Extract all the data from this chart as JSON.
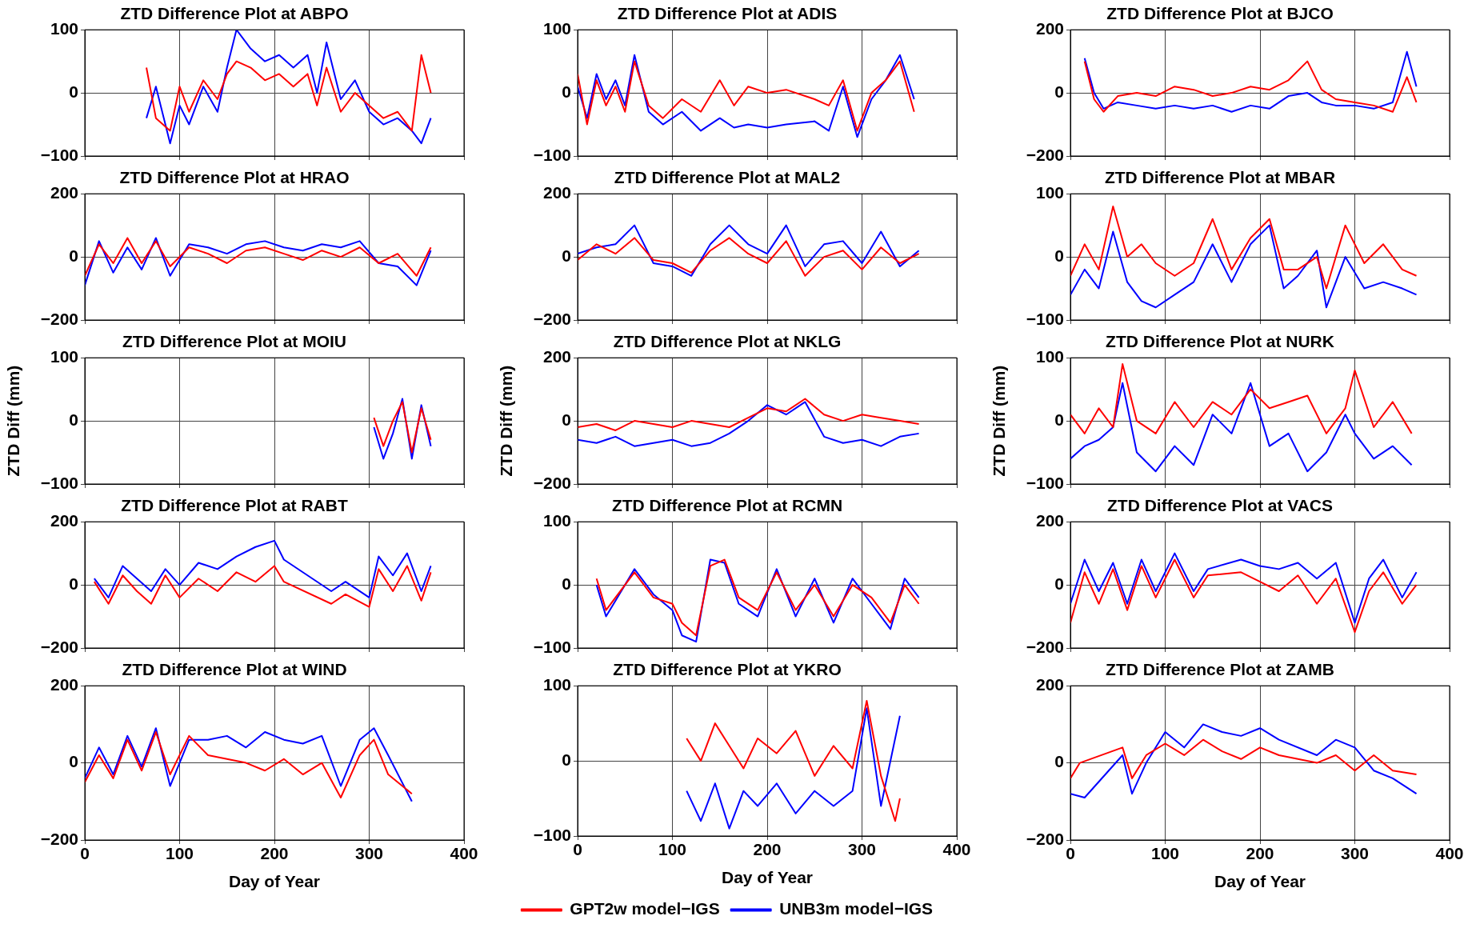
{
  "chart_data": [
    {
      "type": "line",
      "title": "ZTD Difference Plot at ABPO",
      "xlim": [
        0,
        400
      ],
      "xticks": [
        0,
        100,
        200,
        300,
        400
      ],
      "ylim": [
        -100,
        100
      ],
      "yticks": [
        -100,
        0,
        100
      ],
      "grid": true,
      "tick_labels": "y",
      "series": [
        {
          "color": "#ff0000",
          "x": [
            65,
            75,
            90,
            100,
            110,
            125,
            140,
            150,
            160,
            175,
            190,
            205,
            220,
            235,
            245,
            255,
            270,
            285,
            300,
            315,
            330,
            345,
            355,
            365
          ],
          "values": [
            40,
            -40,
            -60,
            10,
            -30,
            20,
            -10,
            30,
            50,
            40,
            20,
            30,
            10,
            30,
            -20,
            40,
            -30,
            0,
            -20,
            -40,
            -30,
            -60,
            60,
            0
          ]
        },
        {
          "color": "#0000ff",
          "x": [
            65,
            75,
            90,
            100,
            110,
            125,
            140,
            150,
            160,
            175,
            190,
            205,
            220,
            235,
            245,
            255,
            270,
            285,
            300,
            315,
            330,
            345,
            355,
            365
          ],
          "values": [
            -40,
            10,
            -80,
            -20,
            -50,
            10,
            -30,
            40,
            100,
            70,
            50,
            60,
            40,
            60,
            0,
            80,
            -10,
            20,
            -30,
            -50,
            -40,
            -60,
            -80,
            -40
          ]
        }
      ]
    },
    {
      "type": "line",
      "title": "ZTD Difference Plot at ADIS",
      "xlim": [
        0,
        400
      ],
      "xticks": [
        0,
        100,
        200,
        300,
        400
      ],
      "ylim": [
        -100,
        100
      ],
      "yticks": [
        -100,
        0,
        100
      ],
      "grid": true,
      "tick_labels": "y",
      "series": [
        {
          "color": "#ff0000",
          "x": [
            0,
            10,
            20,
            30,
            40,
            50,
            60,
            75,
            90,
            110,
            130,
            150,
            165,
            180,
            200,
            220,
            250,
            265,
            280,
            295,
            310,
            325,
            340,
            355
          ],
          "values": [
            30,
            -50,
            20,
            -20,
            10,
            -30,
            50,
            -20,
            -40,
            -10,
            -30,
            20,
            -20,
            10,
            0,
            5,
            -10,
            -20,
            20,
            -60,
            0,
            20,
            50,
            -30
          ]
        },
        {
          "color": "#0000ff",
          "x": [
            0,
            10,
            20,
            30,
            40,
            50,
            60,
            75,
            90,
            110,
            130,
            150,
            165,
            180,
            200,
            220,
            250,
            265,
            280,
            295,
            310,
            325,
            340,
            355
          ],
          "values": [
            10,
            -40,
            30,
            -10,
            20,
            -20,
            60,
            -30,
            -50,
            -30,
            -60,
            -40,
            -55,
            -50,
            -55,
            -50,
            -45,
            -60,
            10,
            -70,
            -10,
            20,
            60,
            -10
          ]
        }
      ]
    },
    {
      "type": "line",
      "title": "ZTD Difference Plot at BJCO",
      "xlim": [
        0,
        400
      ],
      "xticks": [
        0,
        100,
        200,
        300,
        400
      ],
      "ylim": [
        -200,
        200
      ],
      "yticks": [
        -200,
        0,
        200
      ],
      "grid": true,
      "tick_labels": "y",
      "series": [
        {
          "color": "#ff0000",
          "x": [
            15,
            25,
            35,
            50,
            70,
            90,
            110,
            130,
            150,
            170,
            190,
            210,
            230,
            250,
            265,
            280,
            300,
            320,
            340,
            355,
            365
          ],
          "values": [
            100,
            -20,
            -60,
            -10,
            0,
            -10,
            20,
            10,
            -10,
            0,
            20,
            10,
            40,
            100,
            10,
            -20,
            -30,
            -40,
            -60,
            50,
            -30
          ]
        },
        {
          "color": "#0000ff",
          "x": [
            15,
            25,
            35,
            50,
            70,
            90,
            110,
            130,
            150,
            170,
            190,
            210,
            230,
            250,
            265,
            280,
            300,
            320,
            340,
            355,
            365
          ],
          "values": [
            110,
            0,
            -50,
            -30,
            -40,
            -50,
            -40,
            -50,
            -40,
            -60,
            -40,
            -50,
            -10,
            0,
            -30,
            -40,
            -40,
            -50,
            -30,
            130,
            20
          ]
        }
      ]
    },
    {
      "type": "line",
      "title": "ZTD Difference Plot at HRAO",
      "xlim": [
        0,
        400
      ],
      "xticks": [
        0,
        100,
        200,
        300,
        400
      ],
      "ylim": [
        -200,
        200
      ],
      "yticks": [
        -200,
        0,
        200
      ],
      "grid": true,
      "tick_labels": "y",
      "series": [
        {
          "color": "#ff0000",
          "x": [
            0,
            15,
            30,
            45,
            60,
            75,
            90,
            110,
            130,
            150,
            170,
            190,
            210,
            230,
            250,
            270,
            290,
            310,
            330,
            350,
            365
          ],
          "values": [
            -60,
            40,
            -20,
            60,
            -20,
            50,
            -30,
            30,
            10,
            -20,
            20,
            30,
            10,
            -10,
            20,
            0,
            30,
            -20,
            10,
            -60,
            30
          ]
        },
        {
          "color": "#0000ff",
          "x": [
            0,
            15,
            30,
            45,
            60,
            75,
            90,
            110,
            130,
            150,
            170,
            190,
            210,
            230,
            250,
            270,
            290,
            310,
            330,
            350,
            365
          ],
          "values": [
            -90,
            50,
            -50,
            30,
            -40,
            60,
            -60,
            40,
            30,
            10,
            40,
            50,
            30,
            20,
            40,
            30,
            50,
            -20,
            -30,
            -90,
            20
          ]
        }
      ]
    },
    {
      "type": "line",
      "title": "ZTD Difference Plot at MAL2",
      "xlim": [
        0,
        400
      ],
      "xticks": [
        0,
        100,
        200,
        300,
        400
      ],
      "ylim": [
        -200,
        200
      ],
      "yticks": [
        -200,
        0,
        200
      ],
      "grid": true,
      "tick_labels": "y",
      "series": [
        {
          "color": "#ff0000",
          "x": [
            0,
            20,
            40,
            60,
            80,
            100,
            120,
            140,
            160,
            180,
            200,
            220,
            240,
            260,
            280,
            300,
            320,
            340,
            360
          ],
          "values": [
            -10,
            40,
            10,
            60,
            -10,
            -20,
            -50,
            20,
            60,
            10,
            -20,
            50,
            -60,
            0,
            20,
            -40,
            30,
            -20,
            10
          ]
        },
        {
          "color": "#0000ff",
          "x": [
            0,
            20,
            40,
            60,
            80,
            100,
            120,
            140,
            160,
            180,
            200,
            220,
            240,
            260,
            280,
            300,
            320,
            340,
            360
          ],
          "values": [
            10,
            30,
            40,
            100,
            -20,
            -30,
            -60,
            40,
            100,
            40,
            10,
            100,
            -30,
            40,
            50,
            -20,
            80,
            -30,
            20
          ]
        }
      ]
    },
    {
      "type": "line",
      "title": "ZTD Difference Plot at MBAR",
      "xlim": [
        0,
        400
      ],
      "xticks": [
        0,
        100,
        200,
        300,
        400
      ],
      "ylim": [
        -100,
        100
      ],
      "yticks": [
        -100,
        0,
        100
      ],
      "grid": true,
      "tick_labels": "y",
      "series": [
        {
          "color": "#ff0000",
          "x": [
            0,
            15,
            30,
            45,
            60,
            75,
            90,
            110,
            130,
            150,
            170,
            190,
            210,
            225,
            240,
            260,
            270,
            290,
            310,
            330,
            350,
            365
          ],
          "values": [
            -30,
            20,
            -20,
            80,
            0,
            20,
            -10,
            -30,
            -10,
            60,
            -20,
            30,
            60,
            -20,
            -20,
            0,
            -50,
            50,
            -10,
            20,
            -20,
            -30
          ]
        },
        {
          "color": "#0000ff",
          "x": [
            0,
            15,
            30,
            45,
            60,
            75,
            90,
            110,
            130,
            150,
            170,
            190,
            210,
            225,
            240,
            260,
            270,
            290,
            310,
            330,
            350,
            365
          ],
          "values": [
            -60,
            -20,
            -50,
            40,
            -40,
            -70,
            -80,
            -60,
            -40,
            20,
            -40,
            20,
            50,
            -50,
            -30,
            10,
            -80,
            0,
            -50,
            -40,
            -50,
            -60
          ]
        }
      ]
    },
    {
      "type": "line",
      "title": "ZTD Difference Plot at MOIU",
      "ylabel": "ZTD Diff (mm)",
      "xlim": [
        0,
        400
      ],
      "xticks": [
        0,
        100,
        200,
        300,
        400
      ],
      "ylim": [
        -100,
        100
      ],
      "yticks": [
        -100,
        0,
        100
      ],
      "grid": true,
      "tick_labels": "y",
      "series": [
        {
          "color": "#ff0000",
          "x": [
            305,
            315,
            325,
            335,
            345,
            355,
            365
          ],
          "values": [
            5,
            -40,
            0,
            30,
            -50,
            20,
            -30
          ]
        },
        {
          "color": "#0000ff",
          "x": [
            305,
            315,
            325,
            335,
            345,
            355,
            365
          ],
          "values": [
            -10,
            -60,
            -20,
            35,
            -60,
            25,
            -40
          ]
        }
      ]
    },
    {
      "type": "line",
      "title": "ZTD Difference Plot at NKLG",
      "ylabel": "ZTD Diff (mm)",
      "xlim": [
        0,
        400
      ],
      "xticks": [
        0,
        100,
        200,
        300,
        400
      ],
      "ylim": [
        -200,
        200
      ],
      "yticks": [
        -200,
        0,
        200
      ],
      "grid": true,
      "tick_labels": "y",
      "series": [
        {
          "color": "#ff0000",
          "x": [
            0,
            20,
            40,
            60,
            80,
            100,
            120,
            140,
            160,
            180,
            200,
            220,
            240,
            260,
            280,
            300,
            320,
            340,
            360
          ],
          "values": [
            -20,
            -10,
            -30,
            0,
            -10,
            -20,
            0,
            -10,
            -20,
            10,
            40,
            30,
            70,
            20,
            0,
            20,
            10,
            0,
            -10
          ]
        },
        {
          "color": "#0000ff",
          "x": [
            0,
            20,
            40,
            60,
            80,
            100,
            120,
            140,
            160,
            180,
            200,
            220,
            240,
            260,
            280,
            300,
            320,
            340,
            360
          ],
          "values": [
            -60,
            -70,
            -50,
            -80,
            -70,
            -60,
            -80,
            -70,
            -40,
            0,
            50,
            20,
            60,
            -50,
            -70,
            -60,
            -80,
            -50,
            -40
          ]
        }
      ]
    },
    {
      "type": "line",
      "title": "ZTD Difference Plot at NURK",
      "ylabel": "ZTD Diff (mm)",
      "xlim": [
        0,
        400
      ],
      "xticks": [
        0,
        100,
        200,
        300,
        400
      ],
      "ylim": [
        -100,
        100
      ],
      "yticks": [
        -100,
        0,
        100
      ],
      "grid": true,
      "tick_labels": "y",
      "series": [
        {
          "color": "#ff0000",
          "x": [
            0,
            15,
            30,
            45,
            55,
            70,
            90,
            110,
            130,
            150,
            170,
            190,
            210,
            230,
            250,
            270,
            290,
            300,
            320,
            340,
            360
          ],
          "values": [
            10,
            -20,
            20,
            -10,
            90,
            0,
            -20,
            30,
            -10,
            30,
            10,
            50,
            20,
            30,
            40,
            -20,
            20,
            80,
            -10,
            30,
            -20
          ]
        },
        {
          "color": "#0000ff",
          "x": [
            0,
            15,
            30,
            45,
            55,
            70,
            90,
            110,
            130,
            150,
            170,
            190,
            210,
            230,
            250,
            270,
            290,
            300,
            320,
            340,
            360
          ],
          "values": [
            -60,
            -40,
            -30,
            -10,
            60,
            -50,
            -80,
            -40,
            -70,
            10,
            -20,
            60,
            -40,
            -20,
            -80,
            -50,
            10,
            -20,
            -60,
            -40,
            -70
          ]
        }
      ]
    },
    {
      "type": "line",
      "title": "ZTD Difference Plot at RABT",
      "xlim": [
        0,
        400
      ],
      "xticks": [
        0,
        100,
        200,
        300,
        400
      ],
      "ylim": [
        -200,
        200
      ],
      "yticks": [
        -200,
        0,
        200
      ],
      "grid": true,
      "tick_labels": "y",
      "series": [
        {
          "color": "#ff0000",
          "x": [
            10,
            25,
            40,
            55,
            70,
            85,
            100,
            120,
            140,
            160,
            180,
            200,
            210,
            260,
            275,
            300,
            310,
            325,
            340,
            355,
            365
          ],
          "values": [
            10,
            -60,
            30,
            -20,
            -60,
            30,
            -40,
            20,
            -20,
            40,
            10,
            60,
            10,
            -60,
            -30,
            -70,
            50,
            -20,
            60,
            -50,
            40
          ]
        },
        {
          "color": "#0000ff",
          "x": [
            10,
            25,
            40,
            55,
            70,
            85,
            100,
            120,
            140,
            160,
            180,
            200,
            210,
            260,
            275,
            300,
            310,
            325,
            340,
            355,
            365
          ],
          "values": [
            20,
            -40,
            60,
            20,
            -20,
            50,
            0,
            70,
            50,
            90,
            120,
            140,
            80,
            -20,
            10,
            -40,
            90,
            30,
            100,
            -20,
            60
          ]
        }
      ]
    },
    {
      "type": "line",
      "title": "ZTD Difference Plot at RCMN",
      "xlim": [
        0,
        400
      ],
      "xticks": [
        0,
        100,
        200,
        300,
        400
      ],
      "ylim": [
        -100,
        100
      ],
      "yticks": [
        -100,
        0,
        100
      ],
      "grid": true,
      "tick_labels": "y",
      "series": [
        {
          "color": "#ff0000",
          "x": [
            20,
            30,
            60,
            80,
            100,
            110,
            125,
            140,
            155,
            170,
            190,
            210,
            230,
            250,
            270,
            290,
            310,
            330,
            345,
            360
          ],
          "values": [
            10,
            -40,
            20,
            -20,
            -30,
            -60,
            -80,
            30,
            40,
            -20,
            -40,
            20,
            -40,
            0,
            -50,
            0,
            -20,
            -60,
            0,
            -30
          ]
        },
        {
          "color": "#0000ff",
          "x": [
            20,
            30,
            60,
            80,
            100,
            110,
            125,
            140,
            155,
            170,
            190,
            210,
            230,
            250,
            270,
            290,
            310,
            330,
            345,
            360
          ],
          "values": [
            0,
            -50,
            25,
            -15,
            -40,
            -80,
            -90,
            40,
            35,
            -30,
            -50,
            25,
            -50,
            10,
            -60,
            10,
            -30,
            -70,
            10,
            -20
          ]
        }
      ]
    },
    {
      "type": "line",
      "title": "ZTD Difference Plot at VACS",
      "xlim": [
        0,
        400
      ],
      "xticks": [
        0,
        100,
        200,
        300,
        400
      ],
      "ylim": [
        -200,
        200
      ],
      "yticks": [
        -200,
        0,
        200
      ],
      "grid": true,
      "tick_labels": "y",
      "series": [
        {
          "color": "#ff0000",
          "x": [
            0,
            15,
            30,
            45,
            60,
            75,
            90,
            110,
            130,
            145,
            180,
            200,
            220,
            240,
            260,
            280,
            300,
            315,
            330,
            350,
            365
          ],
          "values": [
            -120,
            40,
            -60,
            50,
            -80,
            60,
            -40,
            80,
            -40,
            30,
            40,
            10,
            -20,
            30,
            -60,
            20,
            -150,
            -20,
            40,
            -60,
            0
          ]
        },
        {
          "color": "#0000ff",
          "x": [
            0,
            15,
            30,
            45,
            60,
            75,
            90,
            110,
            130,
            145,
            180,
            200,
            220,
            240,
            260,
            280,
            300,
            315,
            330,
            350,
            365
          ],
          "values": [
            -60,
            80,
            -20,
            70,
            -60,
            80,
            -20,
            100,
            -20,
            50,
            80,
            60,
            50,
            70,
            20,
            70,
            -120,
            20,
            80,
            -40,
            40
          ]
        }
      ]
    },
    {
      "type": "line",
      "title": "ZTD Difference Plot at WIND",
      "xlabel": "Day of Year",
      "xlim": [
        0,
        400
      ],
      "xticks": [
        0,
        100,
        200,
        300,
        400
      ],
      "ylim": [
        -200,
        200
      ],
      "yticks": [
        -200,
        0,
        200
      ],
      "grid": true,
      "series": [
        {
          "color": "#ff0000",
          "x": [
            0,
            15,
            30,
            45,
            60,
            75,
            90,
            110,
            130,
            150,
            170,
            190,
            210,
            230,
            250,
            270,
            290,
            305,
            320,
            345
          ],
          "values": [
            -50,
            20,
            -40,
            60,
            -20,
            80,
            -30,
            70,
            20,
            10,
            0,
            -20,
            10,
            -30,
            0,
            -90,
            20,
            60,
            -30,
            -80
          ]
        },
        {
          "color": "#0000ff",
          "x": [
            0,
            15,
            30,
            45,
            60,
            75,
            90,
            110,
            130,
            150,
            170,
            190,
            210,
            230,
            250,
            270,
            290,
            305,
            320,
            345
          ],
          "values": [
            -40,
            40,
            -30,
            70,
            -10,
            90,
            -60,
            60,
            60,
            70,
            40,
            80,
            60,
            50,
            70,
            -60,
            60,
            90,
            20,
            -100
          ]
        }
      ]
    },
    {
      "type": "line",
      "title": "ZTD Difference Plot at YKRO",
      "xlabel": "Day of Year",
      "xlim": [
        0,
        400
      ],
      "xticks": [
        0,
        100,
        200,
        300,
        400
      ],
      "ylim": [
        -100,
        100
      ],
      "yticks": [
        -100,
        0,
        100
      ],
      "grid": true,
      "legend": "bottom",
      "series": [
        {
          "name": "GPT2w model−IGS",
          "color": "#ff0000",
          "x": [
            115,
            130,
            145,
            160,
            175,
            190,
            210,
            230,
            250,
            270,
            290,
            305,
            320,
            335,
            340
          ],
          "values": [
            30,
            0,
            50,
            20,
            -10,
            30,
            10,
            40,
            -20,
            20,
            -10,
            80,
            -20,
            -80,
            -50
          ]
        },
        {
          "name": "UNB3m model−IGS",
          "color": "#0000ff",
          "x": [
            115,
            130,
            145,
            160,
            175,
            190,
            210,
            230,
            250,
            270,
            290,
            305,
            320,
            335,
            340
          ],
          "values": [
            -40,
            -80,
            -30,
            -90,
            -40,
            -60,
            -30,
            -70,
            -40,
            -60,
            -40,
            70,
            -60,
            30,
            60
          ]
        }
      ]
    },
    {
      "type": "line",
      "title": "ZTD Difference Plot at ZAMB",
      "xlabel": "Day of Year",
      "xlim": [
        0,
        400
      ],
      "xticks": [
        0,
        100,
        200,
        300,
        400
      ],
      "ylim": [
        -200,
        200
      ],
      "yticks": [
        -200,
        0,
        200
      ],
      "grid": true,
      "series": [
        {
          "color": "#ff0000",
          "x": [
            0,
            10,
            55,
            65,
            80,
            100,
            120,
            140,
            160,
            180,
            200,
            220,
            260,
            280,
            300,
            320,
            340,
            365
          ],
          "values": [
            -40,
            0,
            40,
            -40,
            20,
            50,
            20,
            60,
            30,
            10,
            40,
            20,
            0,
            20,
            -20,
            20,
            -20,
            -30
          ]
        },
        {
          "color": "#0000ff",
          "x": [
            0,
            15,
            55,
            65,
            80,
            100,
            120,
            140,
            160,
            180,
            200,
            220,
            260,
            280,
            300,
            320,
            340,
            365
          ],
          "values": [
            -80,
            -90,
            20,
            -80,
            0,
            80,
            40,
            100,
            80,
            70,
            90,
            60,
            20,
            60,
            40,
            -20,
            -40,
            -80
          ]
        }
      ]
    }
  ]
}
